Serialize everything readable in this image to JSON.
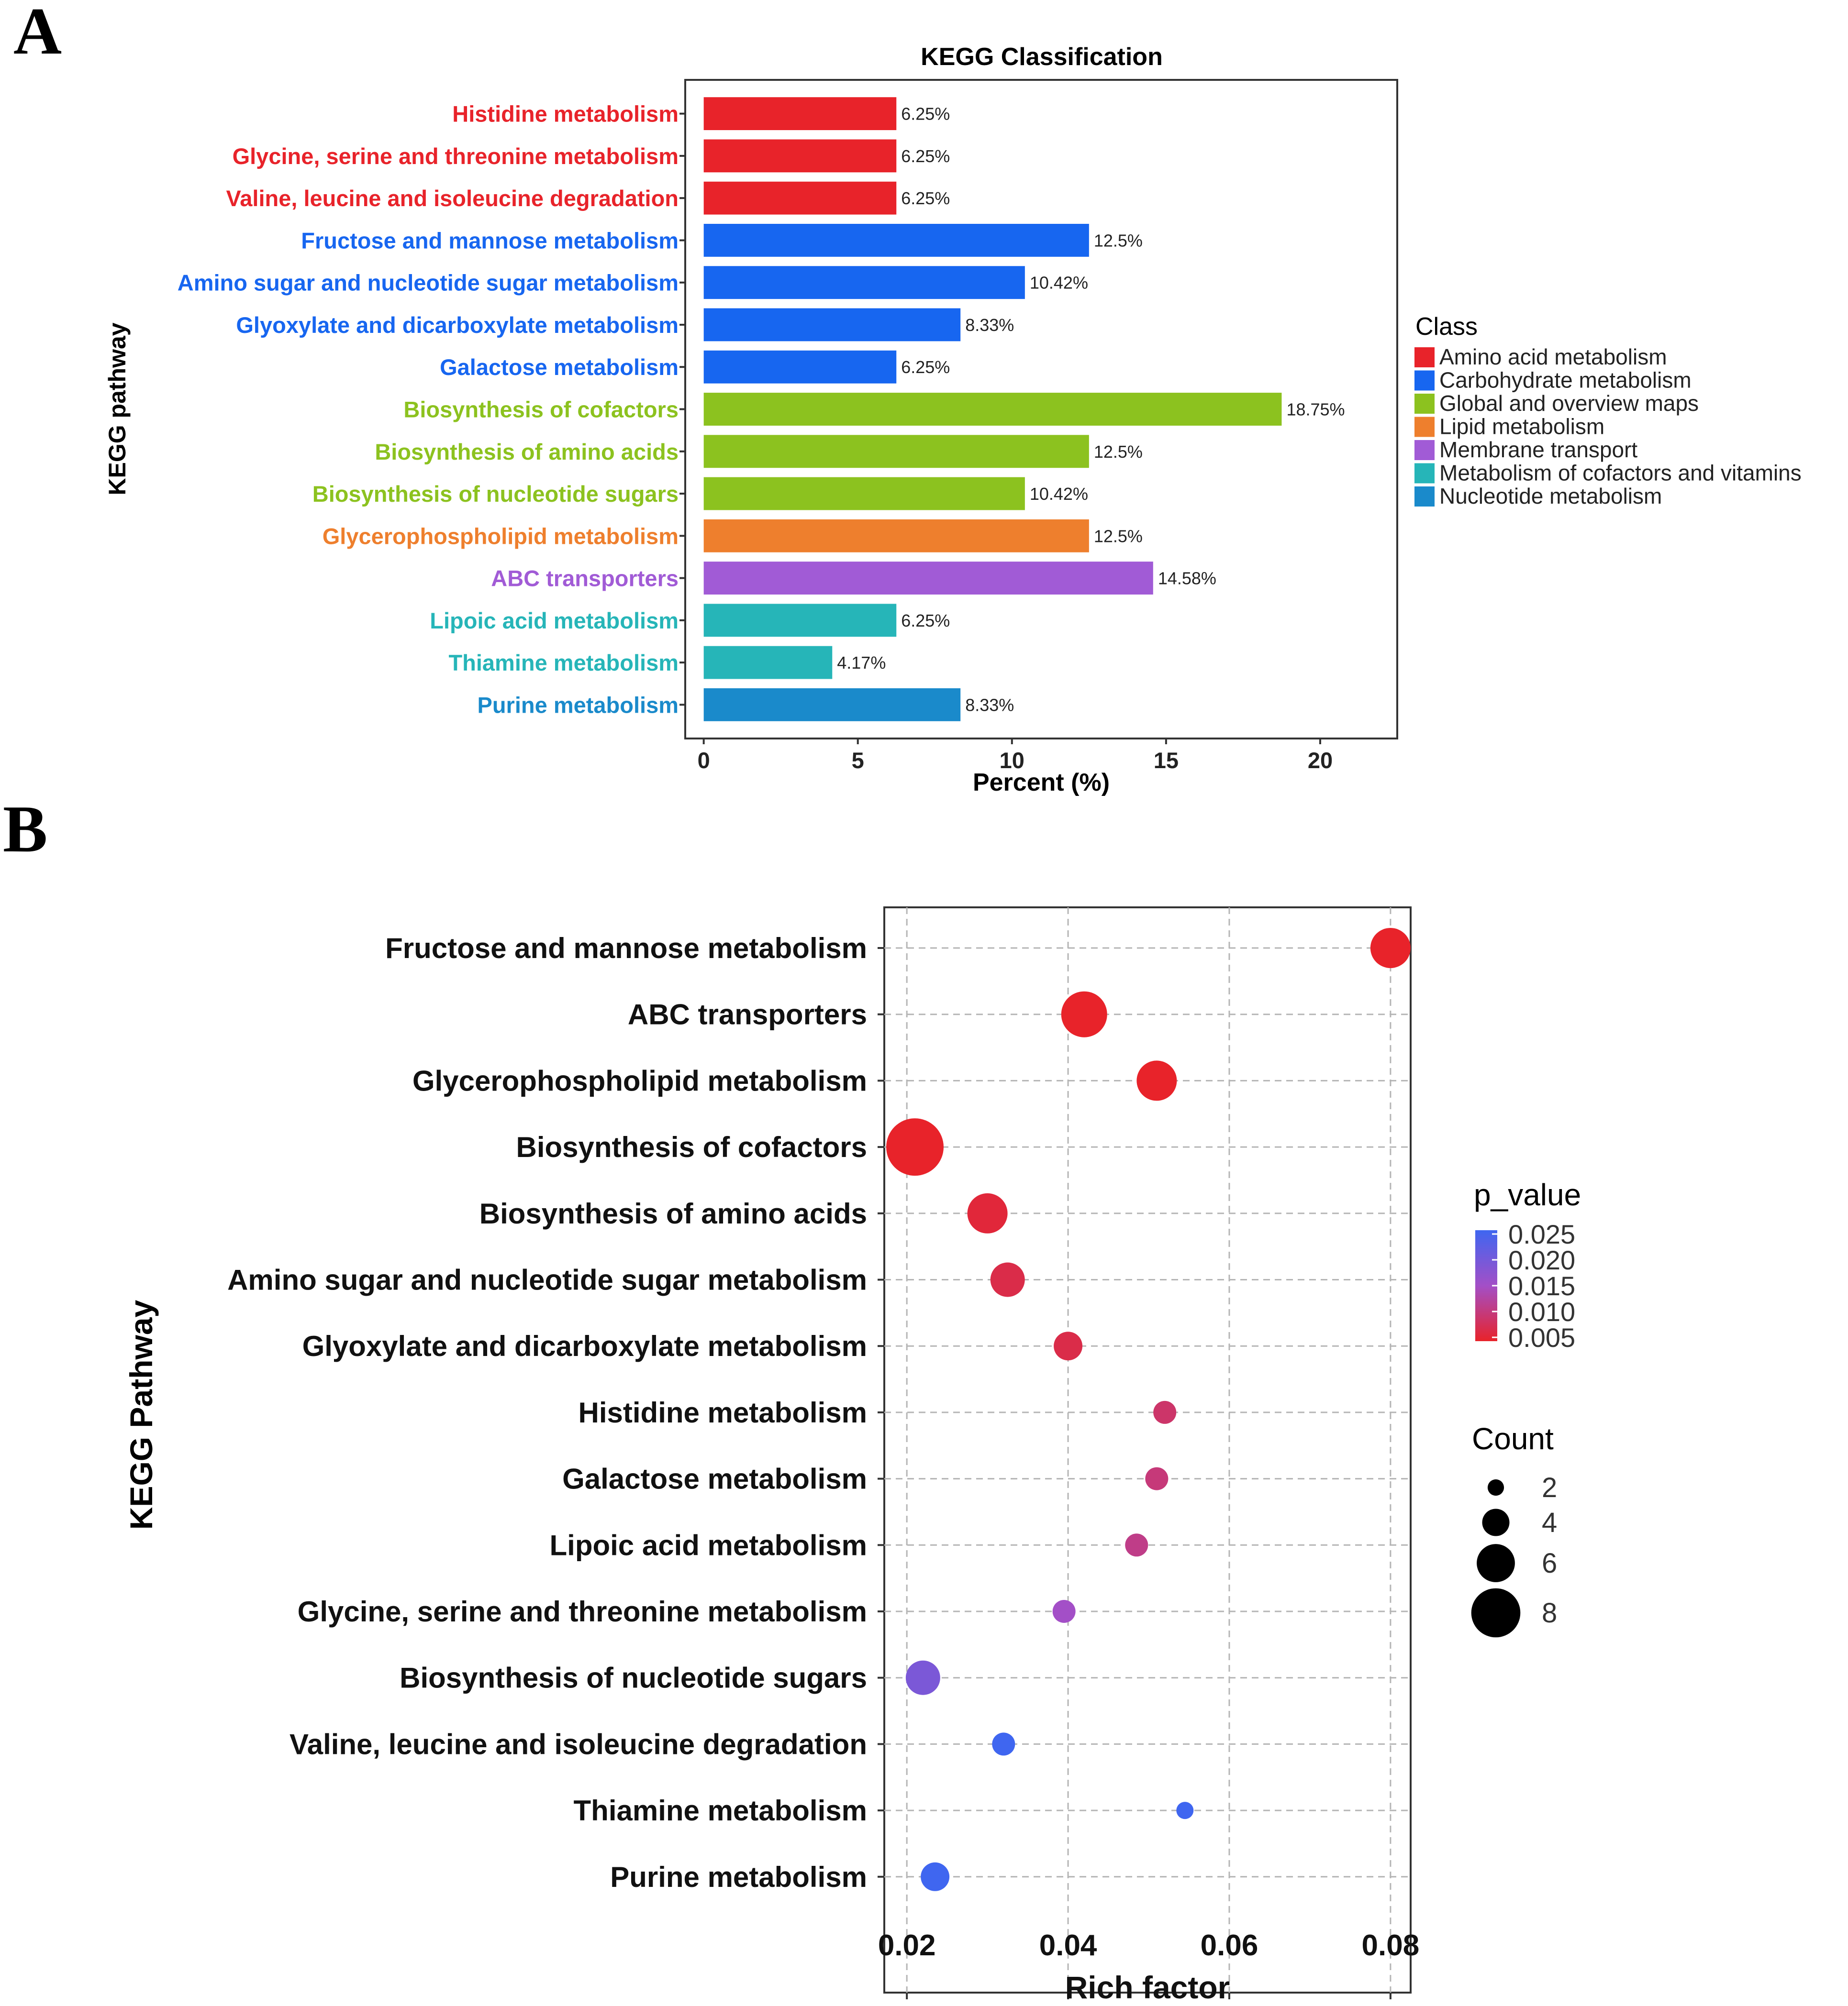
{
  "panel_labels": {
    "a": "A",
    "b": "B"
  },
  "colors": {
    "amino": "#e8232a",
    "carb": "#1766f0",
    "global": "#8cc21f",
    "lipid": "#ee7f2d",
    "membrane": "#a15bd6",
    "cofactors": "#26b5b8",
    "nucleotide": "#1a8acb",
    "pval_low": "#e8232a",
    "pval_high": "#3f66f0"
  },
  "chart_data": [
    {
      "type": "bar",
      "orientation": "horizontal",
      "title": "KEGG Classification",
      "xlabel": "Percent (%)",
      "ylabel": "KEGG pathway",
      "xlim": [
        -0.6,
        22.5
      ],
      "xticks": [
        0,
        5,
        10,
        15,
        20
      ],
      "grid": false,
      "legend": {
        "title": "Class",
        "position": "right",
        "items": [
          {
            "label": "Amino acid metabolism",
            "color": "#e8232a"
          },
          {
            "label": "Carbohydrate metabolism",
            "color": "#1766f0"
          },
          {
            "label": "Global and overview maps",
            "color": "#8cc21f"
          },
          {
            "label": "Lipid metabolism",
            "color": "#ee7f2d"
          },
          {
            "label": "Membrane transport",
            "color": "#a15bd6"
          },
          {
            "label": "Metabolism of cofactors and vitamins",
            "color": "#26b5b8"
          },
          {
            "label": "Nucleotide metabolism",
            "color": "#1a8acb"
          }
        ]
      },
      "bars": [
        {
          "category": "Histidine metabolism",
          "value": 6.25,
          "label": "6.25%",
          "color": "#e8232a"
        },
        {
          "category": "Glycine, serine and threonine metabolism",
          "value": 6.25,
          "label": "6.25%",
          "color": "#e8232a"
        },
        {
          "category": "Valine, leucine and isoleucine degradation",
          "value": 6.25,
          "label": "6.25%",
          "color": "#e8232a"
        },
        {
          "category": "Fructose and mannose metabolism",
          "value": 12.5,
          "label": "12.5%",
          "color": "#1766f0"
        },
        {
          "category": "Amino sugar and nucleotide sugar metabolism",
          "value": 10.42,
          "label": "10.42%",
          "color": "#1766f0"
        },
        {
          "category": "Glyoxylate and dicarboxylate metabolism",
          "value": 8.33,
          "label": "8.33%",
          "color": "#1766f0"
        },
        {
          "category": "Galactose metabolism",
          "value": 6.25,
          "label": "6.25%",
          "color": "#1766f0"
        },
        {
          "category": "Biosynthesis of cofactors",
          "value": 18.75,
          "label": "18.75%",
          "color": "#8cc21f"
        },
        {
          "category": "Biosynthesis of amino acids",
          "value": 12.5,
          "label": "12.5%",
          "color": "#8cc21f"
        },
        {
          "category": "Biosynthesis of nucleotide sugars",
          "value": 10.42,
          "label": "10.42%",
          "color": "#8cc21f"
        },
        {
          "category": "Glycerophospholipid metabolism",
          "value": 12.5,
          "label": "12.5%",
          "color": "#ee7f2d"
        },
        {
          "category": "ABC transporters",
          "value": 14.58,
          "label": "14.58%",
          "color": "#a15bd6"
        },
        {
          "category": "Lipoic acid metabolism",
          "value": 6.25,
          "label": "6.25%",
          "color": "#26b5b8"
        },
        {
          "category": "Thiamine metabolism",
          "value": 4.17,
          "label": "4.17%",
          "color": "#26b5b8"
        },
        {
          "category": "Purine metabolism",
          "value": 8.33,
          "label": "8.33%",
          "color": "#1a8acb"
        }
      ]
    },
    {
      "type": "scatter",
      "subtype": "bubble",
      "title": "",
      "xlabel": "Rich factor",
      "ylabel": "KEGG Pathway",
      "xlim": [
        0.0172,
        0.0825
      ],
      "xticks": [
        0.02,
        0.04,
        0.06,
        0.08
      ],
      "xtick_labels": [
        "0.02",
        "0.04",
        "0.06",
        "0.08"
      ],
      "grid": true,
      "color_legend": {
        "title": "p_value",
        "range": [
          0.005,
          0.025
        ],
        "ticks": [
          0.025,
          0.02,
          0.015,
          0.01,
          0.005
        ],
        "tick_labels": [
          "0.025",
          "0.020",
          "0.015",
          "0.010",
          "0.005"
        ]
      },
      "size_legend": {
        "title": "Count",
        "values": [
          2,
          4,
          6,
          8
        ]
      },
      "points": [
        {
          "pathway": "Fructose and mannose metabolism",
          "rich_factor": 0.08,
          "count": 6,
          "p_value": 0.002
        },
        {
          "pathway": "ABC transporters",
          "rich_factor": 0.042,
          "count": 7,
          "p_value": 0.003
        },
        {
          "pathway": "Glycerophospholipid metabolism",
          "rich_factor": 0.051,
          "count": 6,
          "p_value": 0.003
        },
        {
          "pathway": "Biosynthesis of cofactors",
          "rich_factor": 0.021,
          "count": 9,
          "p_value": 0.004
        },
        {
          "pathway": "Biosynthesis of amino acids",
          "rich_factor": 0.03,
          "count": 6,
          "p_value": 0.006
        },
        {
          "pathway": "Amino sugar and nucleotide sugar metabolism",
          "rich_factor": 0.0325,
          "count": 5,
          "p_value": 0.007
        },
        {
          "pathway": "Glyoxylate and dicarboxylate metabolism",
          "rich_factor": 0.04,
          "count": 4,
          "p_value": 0.007
        },
        {
          "pathway": "Histidine metabolism",
          "rich_factor": 0.052,
          "count": 3,
          "p_value": 0.009
        },
        {
          "pathway": "Galactose metabolism",
          "rich_factor": 0.051,
          "count": 3,
          "p_value": 0.01
        },
        {
          "pathway": "Lipoic acid metabolism",
          "rich_factor": 0.0485,
          "count": 3,
          "p_value": 0.011
        },
        {
          "pathway": "Glycine, serine and threonine metabolism",
          "rich_factor": 0.0395,
          "count": 3,
          "p_value": 0.015
        },
        {
          "pathway": "Biosynthesis of nucleotide sugars",
          "rich_factor": 0.022,
          "count": 5,
          "p_value": 0.019
        },
        {
          "pathway": "Valine, leucine and isoleucine degradation",
          "rich_factor": 0.032,
          "count": 3,
          "p_value": 0.025
        },
        {
          "pathway": "Thiamine metabolism",
          "rich_factor": 0.0545,
          "count": 2,
          "p_value": 0.026
        },
        {
          "pathway": "Purine metabolism",
          "rich_factor": 0.0235,
          "count": 4,
          "p_value": 0.027
        }
      ]
    }
  ]
}
